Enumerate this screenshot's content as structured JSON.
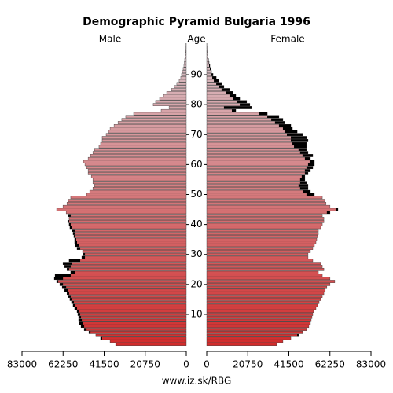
{
  "chart_data": {
    "type": "pyramid",
    "title": "Demographic Pyramid Bulgaria 1996",
    "left_label": "Male",
    "center_label": "Age",
    "right_label": "Female",
    "source": "www.iz.sk/RBG",
    "ages": [
      0,
      1,
      2,
      3,
      4,
      5,
      6,
      7,
      8,
      9,
      10,
      11,
      12,
      13,
      14,
      15,
      16,
      17,
      18,
      19,
      20,
      21,
      22,
      23,
      24,
      25,
      26,
      27,
      28,
      29,
      30,
      31,
      32,
      33,
      34,
      35,
      36,
      37,
      38,
      39,
      40,
      41,
      42,
      43,
      44,
      45,
      46,
      47,
      48,
      49,
      50,
      51,
      52,
      53,
      54,
      55,
      56,
      57,
      58,
      59,
      60,
      61,
      62,
      63,
      64,
      65,
      66,
      67,
      68,
      69,
      70,
      71,
      72,
      73,
      74,
      75,
      76,
      77,
      78,
      79,
      80,
      81,
      82,
      83,
      84,
      85,
      86,
      87,
      88,
      89,
      90,
      91,
      92,
      93,
      94,
      95,
      96,
      97,
      98,
      99,
      100
    ],
    "series": [
      {
        "name": "Male",
        "side": "left",
        "values": [
          35700,
          38500,
          43300,
          45700,
          49200,
          51600,
          53200,
          54000,
          54400,
          54400,
          54800,
          55200,
          56400,
          57200,
          58000,
          58800,
          59600,
          60300,
          61500,
          62700,
          63900,
          65500,
          66700,
          66300,
          58400,
          60300,
          61500,
          62300,
          59200,
          52800,
          52000,
          52400,
          55200,
          56000,
          56400,
          56400,
          56800,
          57200,
          57600,
          58800,
          59200,
          59900,
          59200,
          59600,
          60700,
          65500,
          62300,
          60300,
          59600,
          58400,
          50400,
          48800,
          47200,
          46400,
          47200,
          47200,
          48000,
          49600,
          49600,
          50400,
          51200,
          52000,
          49600,
          48400,
          47200,
          46400,
          44100,
          43300,
          42500,
          42500,
          40500,
          39300,
          38500,
          36500,
          34500,
          32600,
          30600,
          26600,
          12700,
          8700,
          16700,
          15500,
          13500,
          11500,
          9900,
          7500,
          6000,
          4800,
          3600,
          2800,
          2400,
          2000,
          1600,
          1200,
          1000,
          800,
          600,
          400,
          300,
          200,
          100
        ]
      },
      {
        "name": "Female",
        "side": "right",
        "values": [
          35300,
          38500,
          42500,
          46400,
          48400,
          50400,
          51600,
          52400,
          52800,
          53200,
          53600,
          54000,
          55200,
          56000,
          56800,
          57600,
          58400,
          59200,
          59900,
          60700,
          62300,
          64700,
          62300,
          58400,
          56400,
          59200,
          58400,
          57600,
          53600,
          51200,
          51200,
          52400,
          53600,
          54400,
          55200,
          55600,
          56000,
          56400,
          56400,
          57600,
          58400,
          59200,
          59200,
          58400,
          62300,
          66300,
          62300,
          60300,
          59600,
          58400,
          54400,
          52400,
          51200,
          51200,
          50400,
          49600,
          49600,
          51200,
          52400,
          53600,
          54400,
          54400,
          52400,
          53600,
          51200,
          50400,
          50400,
          50400,
          51200,
          50400,
          48400,
          45700,
          43300,
          42500,
          39300,
          38500,
          36500,
          30600,
          14700,
          22600,
          21800,
          20200,
          16700,
          14700,
          13100,
          11500,
          8700,
          7500,
          6000,
          4800,
          3200,
          2400,
          2000,
          1600,
          1200,
          900,
          600,
          400,
          300,
          200,
          100
        ]
      }
    ],
    "xlim": [
      0,
      83000
    ],
    "xticks": [
      0,
      20750,
      41500,
      62250,
      83000
    ],
    "ylim": [
      -0.5,
      100.5
    ],
    "yticks": [
      10,
      20,
      30,
      40,
      50,
      60,
      70,
      80,
      90
    ],
    "colors": [
      "#d22c2c",
      "#d8c6cc"
    ],
    "excess_color": "#000000"
  }
}
